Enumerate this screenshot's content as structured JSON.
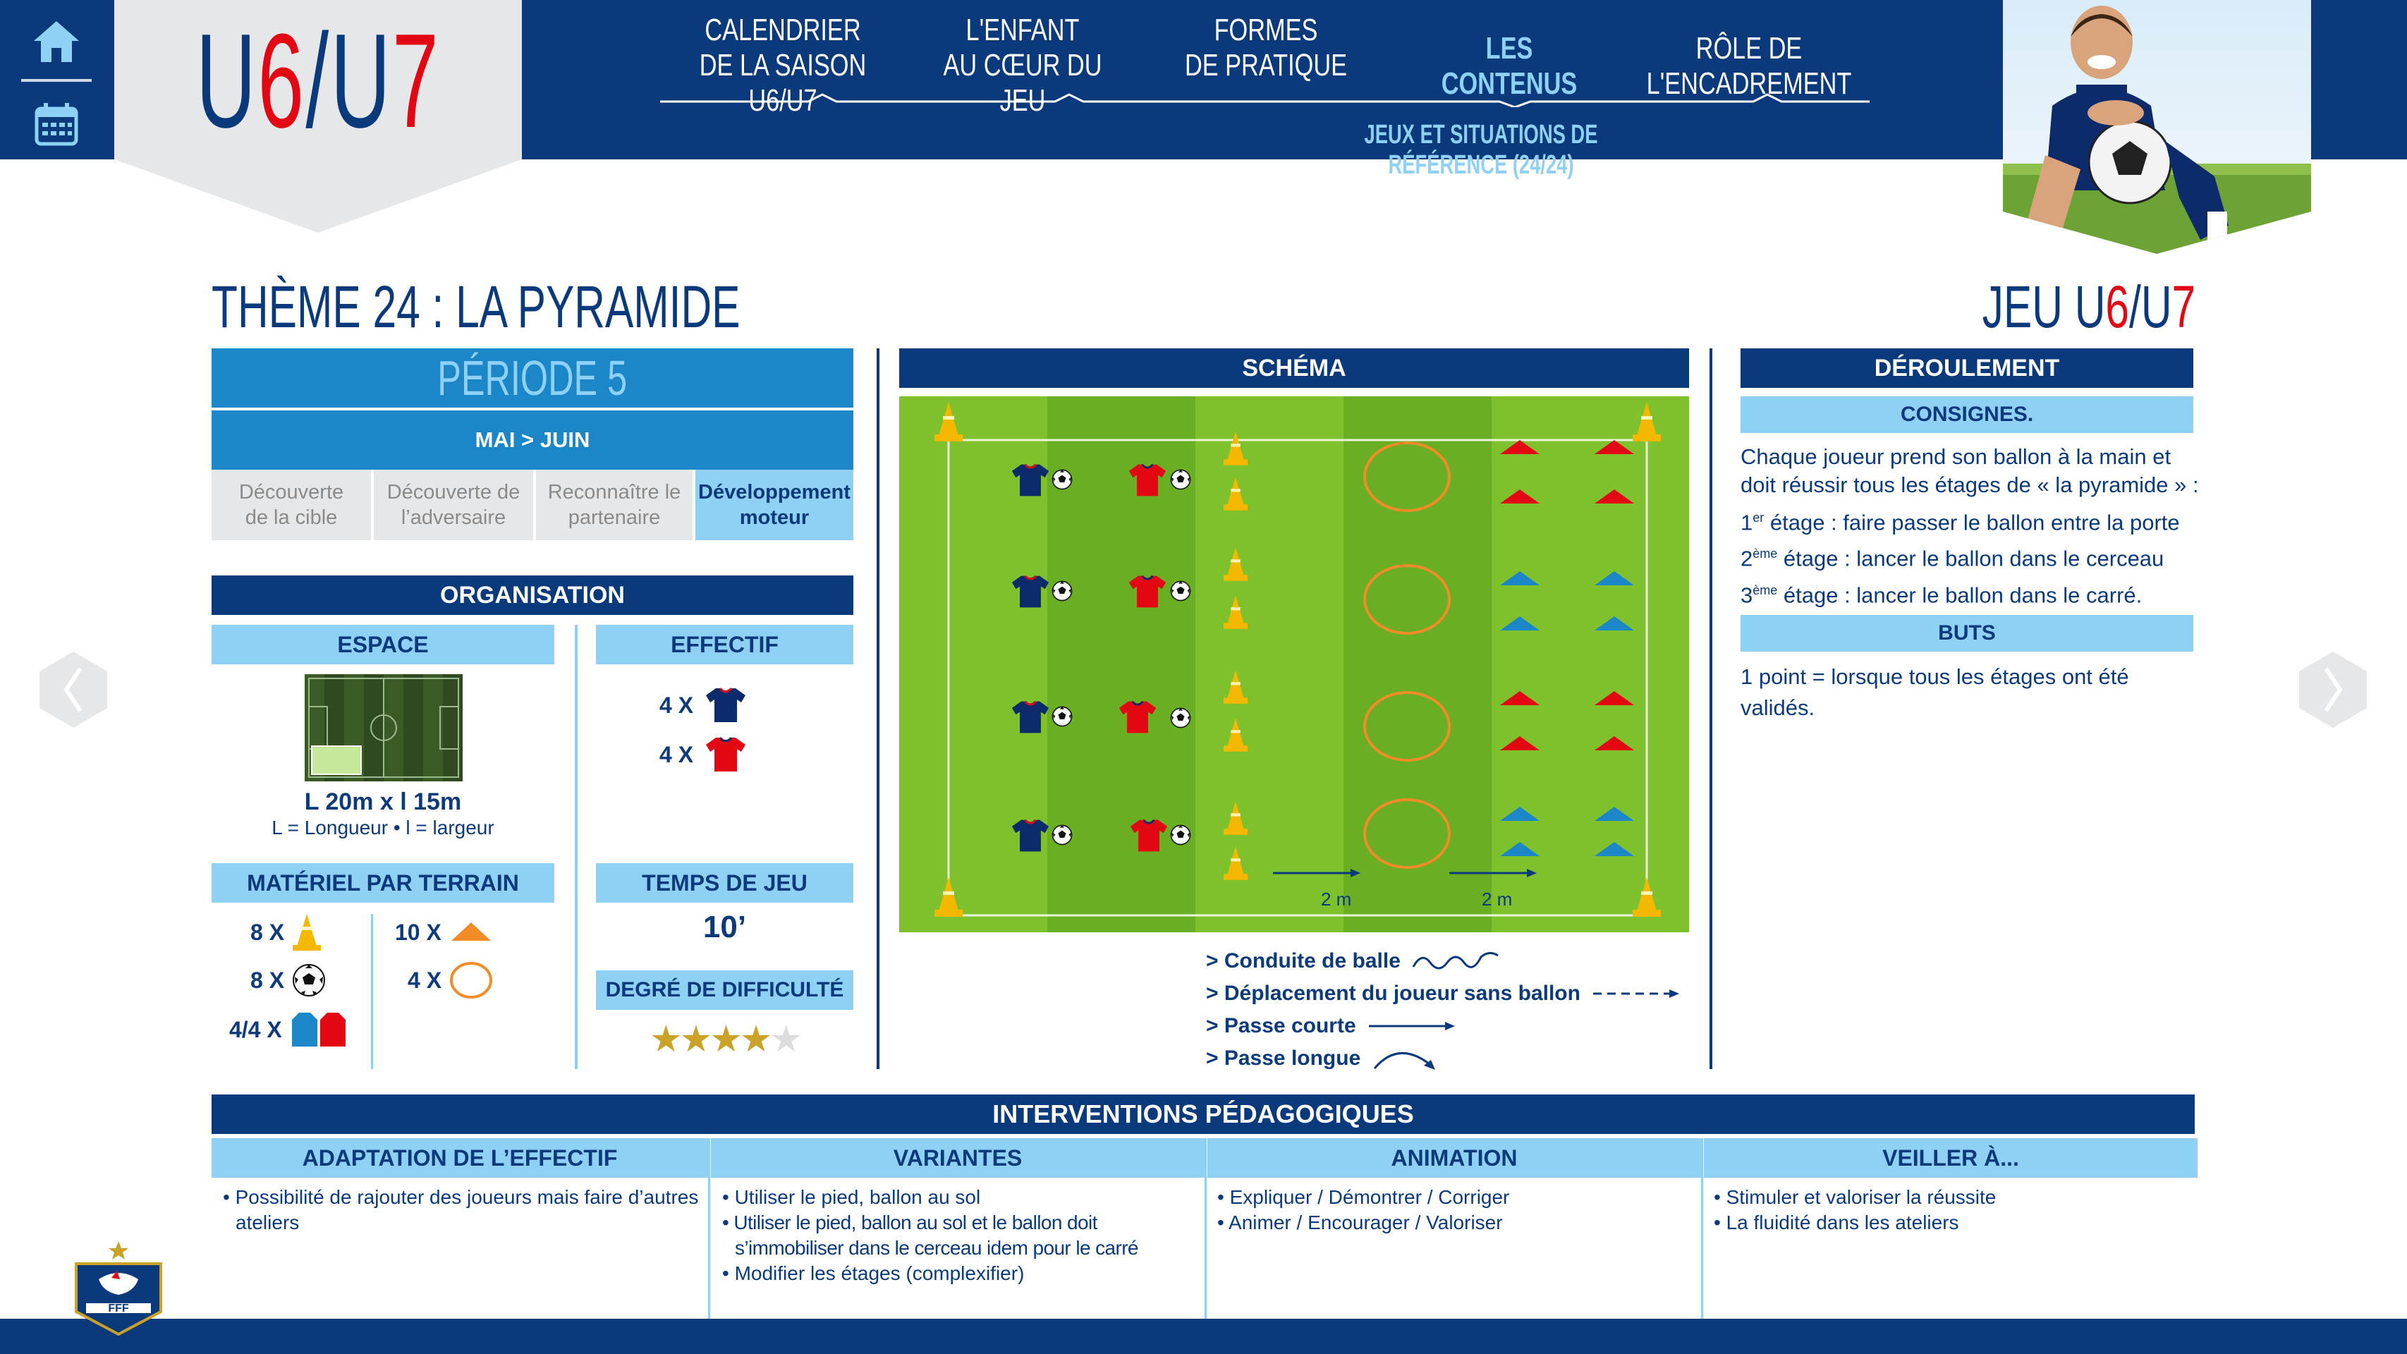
{
  "nav": {
    "home_icon": "home-icon",
    "calendar_icon": "calendar-icon"
  },
  "logo": {
    "part1": "U",
    "part2": "6",
    "part3": "/U",
    "part4": "7"
  },
  "menu": {
    "items": [
      {
        "line1": "CALENDRIER",
        "line2": "DE LA SAISON U6/U7"
      },
      {
        "line1": "L'ENFANT",
        "line2": "AU CŒUR DU JEU"
      },
      {
        "line1": "FORMES",
        "line2": "DE PRATIQUE"
      },
      {
        "line1": "LES CONTENUS",
        "line2": ""
      },
      {
        "line1": "RÔLE DE L'ENCADREMENT",
        "line2": ""
      }
    ],
    "active_color": "#8fd0f5",
    "submenu": "JEUX ET SITUATIONS DE RÉFÉRENCE (24/24)"
  },
  "page": {
    "theme_title": "THÈME 24 : LA PYRAMIDE",
    "jeu_label_1": "JEU U",
    "jeu_label_2": "6",
    "jeu_label_3": "/U",
    "jeu_label_4": "7"
  },
  "periode": {
    "title": "PÉRIODE 5",
    "months": "MAI > JUIN",
    "stages": [
      {
        "line1": "Découverte",
        "line2": "de la cible",
        "active": false
      },
      {
        "line1": "Découverte de",
        "line2": "l’adversaire",
        "active": false
      },
      {
        "line1": "Reconnaître le",
        "line2": "partenaire",
        "active": false
      },
      {
        "line1": "Développement",
        "line2": "moteur",
        "active": true
      }
    ]
  },
  "organisation": {
    "title": "ORGANISATION",
    "espace": {
      "title": "ESPACE",
      "dimensions": "L 20m x l 15m",
      "note": "L = Longueur • l = largeur"
    },
    "effectif": {
      "title": "EFFECTIF",
      "rows": [
        {
          "count": "4 X",
          "color": "blue"
        },
        {
          "count": "4 X",
          "color": "red"
        }
      ]
    },
    "materiel": {
      "title": "MATÉRIEL PAR TERRAIN",
      "items": [
        {
          "count": "8 X",
          "icon": "cone-icon"
        },
        {
          "count": "10 X",
          "icon": "flat-cone-icon"
        },
        {
          "count": "8 X",
          "icon": "ball-icon"
        },
        {
          "count": "4 X",
          "icon": "hoop-icon"
        },
        {
          "count": "4/4 X",
          "icon": "bibs-icon"
        }
      ]
    },
    "temps": {
      "title": "TEMPS DE JEU",
      "value": "10’"
    },
    "difficulte": {
      "title": "DEGRÉ DE DIFFICULTÉ",
      "stars": 4,
      "max": 5,
      "filled": "★★★★",
      "empty": "★"
    }
  },
  "schema": {
    "title": "SCHÉMA",
    "distance_1": "2 m",
    "distance_2": "2 m",
    "legend": [
      {
        "label": "> Conduite de balle"
      },
      {
        "label": "> Déplacement du joueur sans ballon"
      },
      {
        "label": "> Passe courte"
      },
      {
        "label": "> Passe longue"
      }
    ]
  },
  "deroulement": {
    "title": "DÉROULEMENT",
    "consignes_title": "CONSIGNES.",
    "consignes_intro": "Chaque joueur prend son ballon à la main et doit réussir tous les étages de « la pyramide » :",
    "etages": [
      {
        "num": "1",
        "sup": "er",
        "text": " étage : faire passer le ballon entre la porte"
      },
      {
        "num": "2",
        "sup": "ème",
        "text": " étage : lancer le ballon dans le cerceau"
      },
      {
        "num": "3",
        "sup": "ème",
        "text": " étage : lancer le ballon dans le carré."
      }
    ],
    "buts_title": "BUTS",
    "buts_text": "1 point = lorsque tous les étages ont été validés."
  },
  "interventions": {
    "title": "INTERVENTIONS PÉDAGOGIQUES",
    "columns": [
      {
        "title": "ADAPTATION DE L’EFFECTIF",
        "items": [
          "• Possibilité de rajouter des joueurs mais faire d’autres ateliers"
        ]
      },
      {
        "title": "VARIANTES",
        "items": [
          "• Utiliser le pied, ballon au sol",
          "• Utiliser le pied, ballon au sol et le ballon doit s’immobiliser dans le cerceau idem pour le carré",
          "• Modifier les étages (complexifier)"
        ]
      },
      {
        "title": "ANIMATION",
        "items": [
          "• Expliquer / Démontrer / Corriger",
          "• Animer / Encourager / Valoriser"
        ]
      },
      {
        "title": "VEILLER À...",
        "items": [
          "• Stimuler et valoriser la réussite",
          "• La fluidité dans les ateliers"
        ]
      }
    ]
  },
  "colors": {
    "navy": "#0b3a7c",
    "light_blue": "#8fd0f5",
    "mid_blue": "#1b87c9",
    "red": "#e30613",
    "grass_light": "#7ec12d",
    "grass_dark": "#6aae24",
    "cone": "#f5b800",
    "orange": "#f28c28"
  },
  "footer": {
    "logo_text": "FFF"
  }
}
